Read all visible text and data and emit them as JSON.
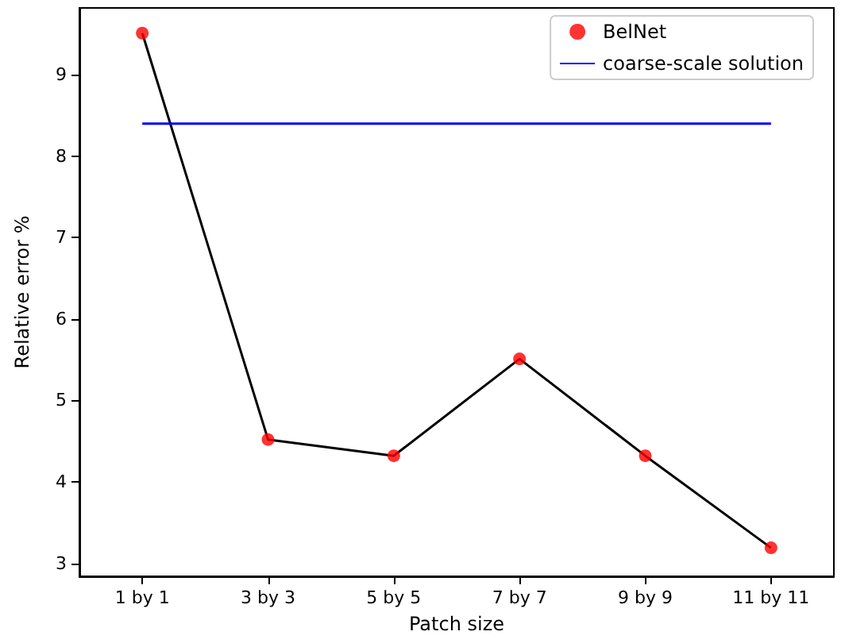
{
  "chart_data": {
    "type": "line",
    "xlabel": "Patch size",
    "ylabel": "Relative error %",
    "categories": [
      "1 by 1",
      "3 by 3",
      "5 by 5",
      "7 by 7",
      "9 by 9",
      "11 by 11"
    ],
    "series": [
      {
        "color": "#000000",
        "marker": "none",
        "values": [
          9.51,
          4.52,
          4.32,
          5.51,
          4.32,
          3.19
        ]
      },
      {
        "type": "scatter",
        "name": "BelNet",
        "color": "#ff0000",
        "marker": "circle",
        "values": [
          9.51,
          4.52,
          4.32,
          5.51,
          4.32,
          3.19
        ]
      },
      {
        "name": "coarse-scale solution",
        "color": "#0000ff",
        "marker": "none",
        "values": [
          8.4,
          8.4,
          8.4,
          8.4,
          8.4,
          8.4
        ]
      }
    ],
    "ylim": [
      2.84,
      9.82
    ],
    "yticks": [
      3,
      4,
      5,
      6,
      7,
      8,
      9
    ],
    "grid": false,
    "legend": "top right"
  }
}
